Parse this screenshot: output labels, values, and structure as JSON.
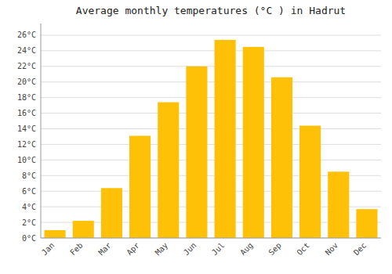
{
  "chart_data": {
    "type": "bar",
    "title": "Average monthly temperatures (°C ) in Hadrut",
    "categories": [
      "Jan",
      "Feb",
      "Mar",
      "Apr",
      "May",
      "Jun",
      "Jul",
      "Aug",
      "Sep",
      "Oct",
      "Nov",
      "Dec"
    ],
    "values": [
      1.0,
      2.2,
      6.4,
      13.1,
      17.4,
      22.0,
      25.4,
      24.5,
      20.6,
      14.4,
      8.5,
      3.7
    ],
    "color": "#FFC107",
    "ylim": [
      0,
      27.5
    ],
    "yticks": [
      {
        "value": 0,
        "label": "0°C"
      },
      {
        "value": 2,
        "label": "2°C"
      },
      {
        "value": 4,
        "label": "4°C"
      },
      {
        "value": 6,
        "label": "6°C"
      },
      {
        "value": 8,
        "label": "8°C"
      },
      {
        "value": 10,
        "label": "10°C"
      },
      {
        "value": 12,
        "label": "12°C"
      },
      {
        "value": 14,
        "label": "14°C"
      },
      {
        "value": 16,
        "label": "16°C"
      },
      {
        "value": 18,
        "label": "18°C"
      },
      {
        "value": 20,
        "label": "20°C"
      },
      {
        "value": 22,
        "label": "22°C"
      },
      {
        "value": 24,
        "label": "24°C"
      },
      {
        "value": 26,
        "label": "26°C"
      }
    ],
    "grid": true
  }
}
